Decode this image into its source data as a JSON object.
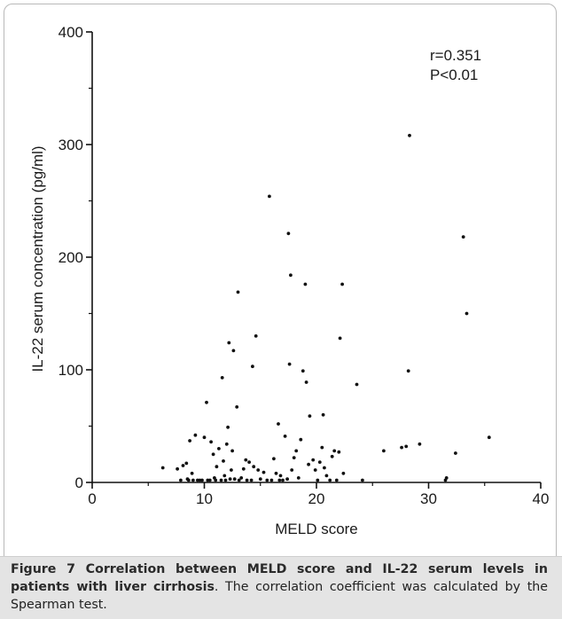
{
  "chart_data": {
    "type": "scatter",
    "xlabel": "MELD score",
    "ylabel": "IL-22 serum concentration (pg/ml)",
    "xlim": [
      0,
      40
    ],
    "ylim": [
      0,
      400
    ],
    "x_ticks": [
      "0",
      "10",
      "20",
      "30",
      "40"
    ],
    "y_ticks": [
      "0",
      "100",
      "200",
      "300",
      "400"
    ],
    "annotations": [
      "r=0.351",
      "P<0.01"
    ],
    "grid": false,
    "points": [
      [
        6.3,
        13
      ],
      [
        7.6,
        12
      ],
      [
        7.9,
        2
      ],
      [
        8.1,
        15
      ],
      [
        8.4,
        17
      ],
      [
        8.5,
        3
      ],
      [
        8.6,
        2
      ],
      [
        8.7,
        37
      ],
      [
        8.9,
        8
      ],
      [
        9.0,
        2
      ],
      [
        9.2,
        42
      ],
      [
        9.4,
        2
      ],
      [
        9.6,
        2
      ],
      [
        9.8,
        2
      ],
      [
        10.0,
        40
      ],
      [
        10.2,
        71
      ],
      [
        10.3,
        2
      ],
      [
        10.5,
        2
      ],
      [
        10.6,
        36
      ],
      [
        10.8,
        25
      ],
      [
        10.9,
        4
      ],
      [
        11.0,
        2
      ],
      [
        11.1,
        14
      ],
      [
        11.3,
        30
      ],
      [
        11.5,
        2
      ],
      [
        11.6,
        93
      ],
      [
        11.7,
        19
      ],
      [
        11.8,
        6
      ],
      [
        11.9,
        2
      ],
      [
        12.0,
        34
      ],
      [
        12.1,
        49
      ],
      [
        12.2,
        124
      ],
      [
        12.3,
        3
      ],
      [
        12.4,
        11
      ],
      [
        12.5,
        28
      ],
      [
        12.6,
        117
      ],
      [
        12.7,
        3
      ],
      [
        12.9,
        67
      ],
      [
        13.0,
        169
      ],
      [
        13.1,
        2
      ],
      [
        13.3,
        4
      ],
      [
        13.5,
        12
      ],
      [
        13.7,
        20
      ],
      [
        13.8,
        2
      ],
      [
        14.0,
        18
      ],
      [
        14.2,
        2
      ],
      [
        14.3,
        103
      ],
      [
        14.4,
        14
      ],
      [
        14.6,
        130
      ],
      [
        14.8,
        11
      ],
      [
        15.0,
        3
      ],
      [
        15.3,
        9
      ],
      [
        15.6,
        2
      ],
      [
        15.8,
        254
      ],
      [
        16.0,
        2
      ],
      [
        16.2,
        21
      ],
      [
        16.4,
        8
      ],
      [
        16.6,
        52
      ],
      [
        16.7,
        2
      ],
      [
        16.8,
        6
      ],
      [
        17.0,
        2
      ],
      [
        17.2,
        41
      ],
      [
        17.4,
        3
      ],
      [
        17.5,
        221
      ],
      [
        17.6,
        105
      ],
      [
        17.7,
        184
      ],
      [
        17.8,
        11
      ],
      [
        18.0,
        22
      ],
      [
        18.2,
        28
      ],
      [
        18.4,
        4
      ],
      [
        18.6,
        38
      ],
      [
        18.8,
        99
      ],
      [
        19.0,
        176
      ],
      [
        19.1,
        89
      ],
      [
        19.3,
        16
      ],
      [
        19.4,
        59
      ],
      [
        19.7,
        20
      ],
      [
        19.9,
        11
      ],
      [
        20.1,
        2
      ],
      [
        20.3,
        18
      ],
      [
        20.5,
        31
      ],
      [
        20.6,
        60
      ],
      [
        20.7,
        13
      ],
      [
        20.9,
        6
      ],
      [
        21.2,
        2
      ],
      [
        21.4,
        23
      ],
      [
        21.6,
        28
      ],
      [
        21.8,
        2
      ],
      [
        22.0,
        27
      ],
      [
        22.1,
        128
      ],
      [
        22.3,
        176
      ],
      [
        22.4,
        8
      ],
      [
        23.6,
        87
      ],
      [
        24.1,
        2
      ],
      [
        26.0,
        28
      ],
      [
        27.6,
        31
      ],
      [
        28.0,
        32
      ],
      [
        28.2,
        99
      ],
      [
        28.3,
        308
      ],
      [
        29.2,
        34
      ],
      [
        31.5,
        2
      ],
      [
        31.6,
        4
      ],
      [
        32.4,
        26
      ],
      [
        33.1,
        218
      ],
      [
        33.4,
        150
      ],
      [
        35.4,
        40
      ]
    ]
  },
  "caption": {
    "bold": "Figure 7 Correlation between MELD score and IL-22 serum levels in patients with liver cirrhosis",
    "rest": ". The correlation coefficient was calculated by the Spearman test."
  }
}
